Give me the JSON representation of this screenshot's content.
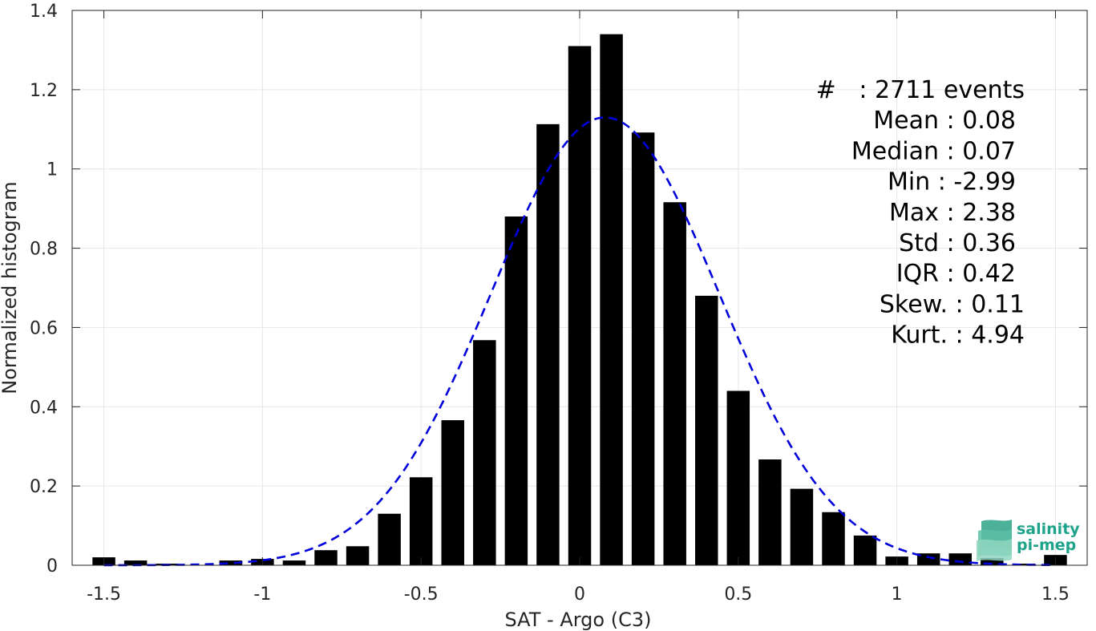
{
  "chart_data": {
    "type": "bar",
    "xlabel": "SAT - Argo (C3)",
    "ylabel": "Normalized histogram",
    "xlim": [
      -1.6,
      1.6
    ],
    "ylim": [
      0,
      1.4
    ],
    "xticks": [
      {
        "value": -1.5,
        "label": "-1.5"
      },
      {
        "value": -1,
        "label": "-1"
      },
      {
        "value": -0.5,
        "label": "-0.5"
      },
      {
        "value": 0,
        "label": "0"
      },
      {
        "value": 0.5,
        "label": "0.5"
      },
      {
        "value": 1,
        "label": "1"
      },
      {
        "value": 1.5,
        "label": "1.5"
      }
    ],
    "yticks": [
      {
        "value": 0,
        "label": "0"
      },
      {
        "value": 0.2,
        "label": "0.2"
      },
      {
        "value": 0.4,
        "label": "0.4"
      },
      {
        "value": 0.6,
        "label": "0.6"
      },
      {
        "value": 0.8,
        "label": "0.8"
      },
      {
        "value": 1,
        "label": "1"
      },
      {
        "value": 1.2,
        "label": "1.2"
      },
      {
        "value": 1.4,
        "label": "1.4"
      }
    ],
    "grid": true,
    "bin_width": 0.1,
    "bar_color": "#000000",
    "bins": [
      {
        "x": -1.5,
        "y": 0.02
      },
      {
        "x": -1.4,
        "y": 0.012
      },
      {
        "x": -1.3,
        "y": 0.004
      },
      {
        "x": -1.2,
        "y": 0.0
      },
      {
        "x": -1.1,
        "y": 0.012
      },
      {
        "x": -1.0,
        "y": 0.016
      },
      {
        "x": -0.9,
        "y": 0.012
      },
      {
        "x": -0.8,
        "y": 0.038
      },
      {
        "x": -0.7,
        "y": 0.048
      },
      {
        "x": -0.6,
        "y": 0.13
      },
      {
        "x": -0.5,
        "y": 0.222
      },
      {
        "x": -0.4,
        "y": 0.366
      },
      {
        "x": -0.3,
        "y": 0.568
      },
      {
        "x": -0.2,
        "y": 0.88
      },
      {
        "x": -0.1,
        "y": 1.113
      },
      {
        "x": 0.0,
        "y": 1.31
      },
      {
        "x": 0.1,
        "y": 1.34
      },
      {
        "x": 0.2,
        "y": 1.092
      },
      {
        "x": 0.3,
        "y": 0.916
      },
      {
        "x": 0.4,
        "y": 0.68
      },
      {
        "x": 0.5,
        "y": 0.44
      },
      {
        "x": 0.6,
        "y": 0.267
      },
      {
        "x": 0.7,
        "y": 0.193
      },
      {
        "x": 0.8,
        "y": 0.134
      },
      {
        "x": 0.9,
        "y": 0.075
      },
      {
        "x": 1.0,
        "y": 0.022
      },
      {
        "x": 1.1,
        "y": 0.03
      },
      {
        "x": 1.2,
        "y": 0.03
      },
      {
        "x": 1.3,
        "y": 0.018
      },
      {
        "x": 1.4,
        "y": 0.004
      },
      {
        "x": 1.5,
        "y": 0.026
      }
    ],
    "fit": {
      "type": "gaussian",
      "style": "dashed",
      "color": "#0000dd",
      "mean": 0.08,
      "std": 0.36,
      "peak": 1.13,
      "x_range": [
        -1.5,
        1.5
      ]
    },
    "stats": [
      {
        "label": "#",
        "sep": " : ",
        "value": "2711 events",
        "gap": "  "
      },
      {
        "label": "Mean",
        "sep": " : ",
        "value": "0.08"
      },
      {
        "label": "Median",
        "sep": " : ",
        "value": "0.07"
      },
      {
        "label": "Min",
        "sep": " : ",
        "value": "-2.99"
      },
      {
        "label": "Max",
        "sep": " : ",
        "value": "2.38"
      },
      {
        "label": "Std",
        "sep": " : ",
        "value": "0.36"
      },
      {
        "label": "IQR",
        "sep": " : ",
        "value": "0.42"
      },
      {
        "label": "Skew.",
        "sep": " : ",
        "value": "0.11"
      },
      {
        "label": "Kurt.",
        "sep": " : ",
        "value": "4.94"
      }
    ]
  },
  "logo": {
    "line1": "salinity",
    "line2": "pi-mep",
    "color": "#1fa38a"
  }
}
